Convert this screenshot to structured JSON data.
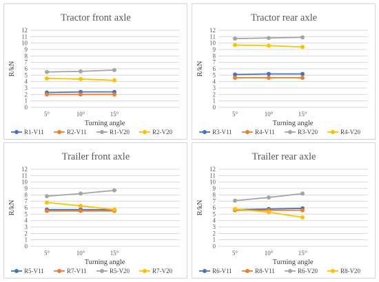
{
  "colors": {
    "blue": "#4472c4",
    "orange": "#ed7d31",
    "gray": "#a5a5a5",
    "yellow": "#ffc000",
    "grid": "#d9d9d9"
  },
  "chart_data": [
    {
      "type": "line",
      "title": "Tractor front axle",
      "xlabel": "Turning angle",
      "ylabel": "R/kN",
      "categories": [
        "5°",
        "10°",
        "15°"
      ],
      "yticks": [
        "0",
        "1",
        "2",
        "3",
        "4",
        "5",
        "6",
        "7",
        "8",
        "9",
        "10",
        "11",
        "12"
      ],
      "ylim": [
        0,
        12
      ],
      "grid": true,
      "legend_position": "bottom",
      "series": [
        {
          "name": "R1-V11",
          "color": "#4472c4",
          "values": [
            2.3,
            2.4,
            2.4
          ]
        },
        {
          "name": "R2-V11",
          "color": "#ed7d31",
          "values": [
            2.0,
            2.0,
            2.0
          ]
        },
        {
          "name": "R1-V20",
          "color": "#a5a5a5",
          "values": [
            5.5,
            5.6,
            5.8
          ]
        },
        {
          "name": "R2-V20",
          "color": "#ffc000",
          "values": [
            4.5,
            4.4,
            4.2
          ]
        }
      ]
    },
    {
      "type": "line",
      "title": "Tractor rear axle",
      "xlabel": "Turning angle",
      "ylabel": "R/kN",
      "categories": [
        "5°",
        "10°",
        "15°"
      ],
      "yticks": [
        "0",
        "1",
        "2",
        "3",
        "4",
        "5",
        "6",
        "7",
        "8",
        "9",
        "10",
        "11",
        "12"
      ],
      "ylim": [
        0,
        12
      ],
      "grid": true,
      "legend_position": "bottom",
      "series": [
        {
          "name": "R3-V11",
          "color": "#4472c4",
          "values": [
            5.1,
            5.2,
            5.2
          ]
        },
        {
          "name": "R4-V11",
          "color": "#ed7d31",
          "values": [
            4.6,
            4.6,
            4.6
          ]
        },
        {
          "name": "R3-V20",
          "color": "#a5a5a5",
          "values": [
            10.7,
            10.8,
            10.9
          ]
        },
        {
          "name": "R4-V20",
          "color": "#ffc000",
          "values": [
            9.7,
            9.6,
            9.4
          ]
        }
      ]
    },
    {
      "type": "line",
      "title": "Trailer front axle",
      "xlabel": "Turning angle",
      "ylabel": "R/kN",
      "categories": [
        "5°",
        "10°",
        "15°"
      ],
      "yticks": [
        "0",
        "1",
        "2",
        "3",
        "4",
        "5",
        "6",
        "7",
        "8",
        "9",
        "10",
        "11",
        "12"
      ],
      "ylim": [
        0,
        12
      ],
      "grid": true,
      "legend_position": "bottom",
      "series": [
        {
          "name": "R5-V11",
          "color": "#4472c4",
          "values": [
            5.7,
            5.7,
            5.7
          ]
        },
        {
          "name": "R7-V11",
          "color": "#ed7d31",
          "values": [
            5.5,
            5.5,
            5.5
          ]
        },
        {
          "name": "R5-V20",
          "color": "#a5a5a5",
          "values": [
            7.8,
            8.2,
            8.7
          ]
        },
        {
          "name": "R7-V20",
          "color": "#ffc000",
          "values": [
            6.8,
            6.3,
            5.7
          ]
        }
      ]
    },
    {
      "type": "line",
      "title": "Trailer rear axle",
      "xlabel": "Turning angle",
      "ylabel": "R/kN",
      "categories": [
        "5°",
        "10°",
        "15°"
      ],
      "yticks": [
        "0",
        "1",
        "2",
        "3",
        "4",
        "5",
        "6",
        "7",
        "8",
        "9",
        "10",
        "11",
        "12"
      ],
      "ylim": [
        0,
        12
      ],
      "grid": true,
      "legend_position": "bottom",
      "series": [
        {
          "name": "R6-V11",
          "color": "#4472c4",
          "values": [
            5.7,
            5.8,
            5.9
          ]
        },
        {
          "name": "R8-V11",
          "color": "#ed7d31",
          "values": [
            5.6,
            5.6,
            5.6
          ]
        },
        {
          "name": "R6-V20",
          "color": "#a5a5a5",
          "values": [
            7.1,
            7.6,
            8.2
          ]
        },
        {
          "name": "R8-V20",
          "color": "#ffc000",
          "values": [
            5.8,
            5.3,
            4.5
          ]
        }
      ]
    }
  ]
}
